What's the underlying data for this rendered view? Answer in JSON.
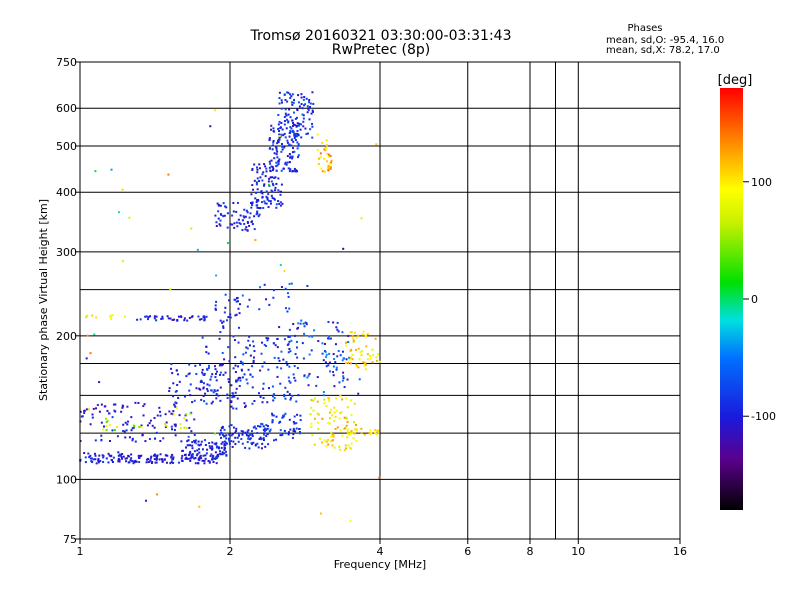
{
  "chart_data": {
    "type": "scatter",
    "title": "Tromsø 20160321 03:30:00-03:31:43",
    "subtitle": "RwPretec (8p)",
    "xlabel": "Frequency [MHz]",
    "ylabel": "Stationary phase Virtual Height [km]",
    "x_scale": "log",
    "y_scale": "log",
    "xlim": [
      1,
      16
    ],
    "ylim": [
      75,
      750
    ],
    "xticks": [
      {
        "value": 1,
        "label": "1"
      },
      {
        "value": 2,
        "label": "2"
      },
      {
        "value": 4,
        "label": "4"
      },
      {
        "value": 6,
        "label": "6"
      },
      {
        "value": 8,
        "label": "8"
      },
      {
        "value": 10,
        "label": "10"
      },
      {
        "value": 16,
        "label": "16"
      }
    ],
    "xgrid": [
      2,
      4,
      6,
      8,
      9,
      10
    ],
    "yticks": [
      {
        "value": 75,
        "label": "75"
      },
      {
        "value": 100,
        "label": "100"
      },
      {
        "value": 200,
        "label": "200"
      },
      {
        "value": 300,
        "label": "300"
      },
      {
        "value": 400,
        "label": "400"
      },
      {
        "value": 500,
        "label": "500"
      },
      {
        "value": 600,
        "label": "600"
      },
      {
        "value": 750,
        "label": "750"
      }
    ],
    "ygrid": [
      100,
      125,
      150,
      175,
      200,
      250,
      300,
      400,
      500,
      600
    ],
    "grid": true,
    "colorbar": {
      "label": "[deg]",
      "range": [
        -180,
        180
      ],
      "ticks": [
        {
          "value": 100,
          "label": "100"
        },
        {
          "value": 0,
          "label": "0"
        },
        {
          "value": -100,
          "label": "-100"
        }
      ]
    },
    "info": {
      "heading": "Phases",
      "line1": "mean, sd,O: -95.4, 16.0",
      "line2": "mean, sd,X:  78.2, 17.0"
    },
    "clusters": [
      {
        "x": [
          1.0,
          1.25
        ],
        "y": [
          108,
          114
        ],
        "phase": [
          -125,
          -90
        ],
        "n": 55
      },
      {
        "x": [
          1.25,
          1.9
        ],
        "y": [
          108,
          113
        ],
        "phase": [
          -125,
          -90
        ],
        "n": 120
      },
      {
        "x": [
          1.6,
          2.0
        ],
        "y": [
          112,
          121
        ],
        "phase": [
          -120,
          -90
        ],
        "n": 70
      },
      {
        "x": [
          1.9,
          2.4
        ],
        "y": [
          116,
          130
        ],
        "phase": [
          -115,
          -85
        ],
        "n": 90
      },
      {
        "x": [
          2.3,
          2.8
        ],
        "y": [
          120,
          138
        ],
        "phase": [
          -110,
          -80
        ],
        "n": 60
      },
      {
        "x": [
          1.0,
          1.7
        ],
        "y": [
          120,
          145
        ],
        "phase": [
          -130,
          -90
        ],
        "n": 110
      },
      {
        "x": [
          1.1,
          1.35
        ],
        "y": [
          126,
          135
        ],
        "phase": [
          20,
          90
        ],
        "n": 14
      },
      {
        "x": [
          1.45,
          1.7
        ],
        "y": [
          128,
          138
        ],
        "phase": [
          40,
          110
        ],
        "n": 10
      },
      {
        "x": [
          1.5,
          2.1
        ],
        "y": [
          145,
          175
        ],
        "phase": [
          -120,
          -85
        ],
        "n": 80
      },
      {
        "x": [
          1.75,
          2.3
        ],
        "y": [
          140,
          200
        ],
        "phase": [
          -120,
          -80
        ],
        "n": 90
      },
      {
        "x": [
          2.3,
          2.75
        ],
        "y": [
          145,
          200
        ],
        "phase": [
          -115,
          -80
        ],
        "n": 70
      },
      {
        "x": [
          2.65,
          3.4
        ],
        "y": [
          150,
          215
        ],
        "phase": [
          -130,
          -60
        ],
        "n": 60
      },
      {
        "x": [
          1.85,
          2.1
        ],
        "y": [
          200,
          245
        ],
        "phase": [
          -115,
          -85
        ],
        "n": 30
      },
      {
        "x": [
          2.1,
          2.9
        ],
        "y": [
          205,
          260
        ],
        "phase": [
          -110,
          -70
        ],
        "n": 25
      },
      {
        "x": [
          1.3,
          1.8
        ],
        "y": [
          215,
          220
        ],
        "phase": [
          -120,
          -90
        ],
        "n": 40
      },
      {
        "x": [
          1.0,
          1.25
        ],
        "y": [
          217,
          221
        ],
        "phase": [
          50,
          110
        ],
        "n": 10
      },
      {
        "x": [
          2.9,
          3.6
        ],
        "y": [
          115,
          150
        ],
        "phase": [
          60,
          130
        ],
        "n": 90
      },
      {
        "x": [
          3.4,
          4.0
        ],
        "y": [
          170,
          205
        ],
        "phase": [
          70,
          130
        ],
        "n": 55
      },
      {
        "x": [
          3.1,
          3.5
        ],
        "y": [
          160,
          200
        ],
        "phase": [
          -140,
          -60
        ],
        "n": 25
      },
      {
        "x": [
          3.4,
          4.0
        ],
        "y": [
          124,
          128
        ],
        "phase": [
          80,
          120
        ],
        "n": 25
      },
      {
        "x": [
          1.85,
          2.3
        ],
        "y": [
          332,
          380
        ],
        "phase": [
          -115,
          -90
        ],
        "n": 70
      },
      {
        "x": [
          2.2,
          2.55
        ],
        "y": [
          370,
          460
        ],
        "phase": [
          -120,
          -85
        ],
        "n": 100
      },
      {
        "x": [
          2.4,
          2.75
        ],
        "y": [
          440,
          560
        ],
        "phase": [
          -120,
          -85
        ],
        "n": 110
      },
      {
        "x": [
          2.5,
          2.95
        ],
        "y": [
          520,
          650
        ],
        "phase": [
          -115,
          -80
        ],
        "n": 110
      },
      {
        "x": [
          3.0,
          3.2
        ],
        "y": [
          440,
          500
        ],
        "phase": [
          80,
          150
        ],
        "n": 30
      },
      {
        "x": [
          3.0,
          3.15
        ],
        "y": [
          500,
          530
        ],
        "phase": [
          70,
          120
        ],
        "n": 4
      },
      {
        "x": [
          1.0,
          4.0
        ],
        "y": [
          75,
          650
        ],
        "phase": [
          -150,
          150
        ],
        "n": 40
      }
    ]
  }
}
